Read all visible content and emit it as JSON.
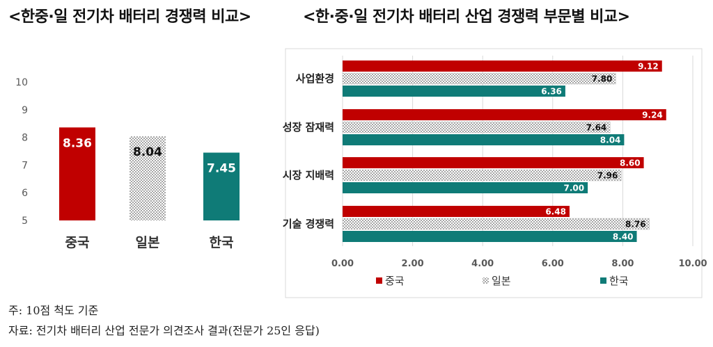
{
  "titles": {
    "left": "<한중·일 전기차 배터리 경쟁력 비교>",
    "right": "<한·중·일 전기차 배터리 산업 경쟁력 부문별 비교>"
  },
  "colors": {
    "china": "#c00000",
    "japan_pattern": "#bfbfbf",
    "korea": "#0f7b77",
    "axis_text": "#595959",
    "grid": "#d9d9d9"
  },
  "chart_data": [
    {
      "type": "bar",
      "title": "",
      "categories": [
        "중국",
        "일본",
        "한국"
      ],
      "values": [
        8.36,
        8.04,
        7.45
      ],
      "value_labels": [
        "8.36",
        "8.04",
        "7.45"
      ],
      "yticks": [
        "10",
        "9",
        "8",
        "7",
        "6",
        "5"
      ],
      "ylim": [
        5,
        10
      ],
      "xlabel": "",
      "ylabel": "",
      "grid": false
    },
    {
      "type": "bar",
      "orientation": "horizontal",
      "title": "",
      "categories": [
        "사업환경",
        "성장 잠재력",
        "시장 지배력",
        "기술 경쟁력"
      ],
      "series": [
        {
          "name": "중국",
          "values": [
            9.12,
            9.24,
            8.6,
            6.48
          ],
          "labels": [
            "9.12",
            "9.24",
            "8.60",
            "6.48"
          ]
        },
        {
          "name": "일본",
          "values": [
            7.8,
            7.64,
            7.96,
            8.76
          ],
          "labels": [
            "7.80",
            "7.64",
            "7.96",
            "8.76"
          ]
        },
        {
          "name": "한국",
          "values": [
            6.36,
            8.04,
            7.0,
            8.4
          ],
          "labels": [
            "6.36",
            "8.04",
            "7.00",
            "8.40"
          ]
        }
      ],
      "xticks": [
        "0.00",
        "2.00",
        "4.00",
        "6.00",
        "8.00",
        "10.00"
      ],
      "xlim": [
        0,
        10
      ],
      "xlabel": "",
      "ylabel": "",
      "grid": true,
      "legend_position": "bottom"
    }
  ],
  "notes": {
    "note": "주: 10점 척도 기준",
    "source": "자료: 전기차 배터리 산업 전문가 의견조사 결과(전문가 25인 응답)"
  }
}
